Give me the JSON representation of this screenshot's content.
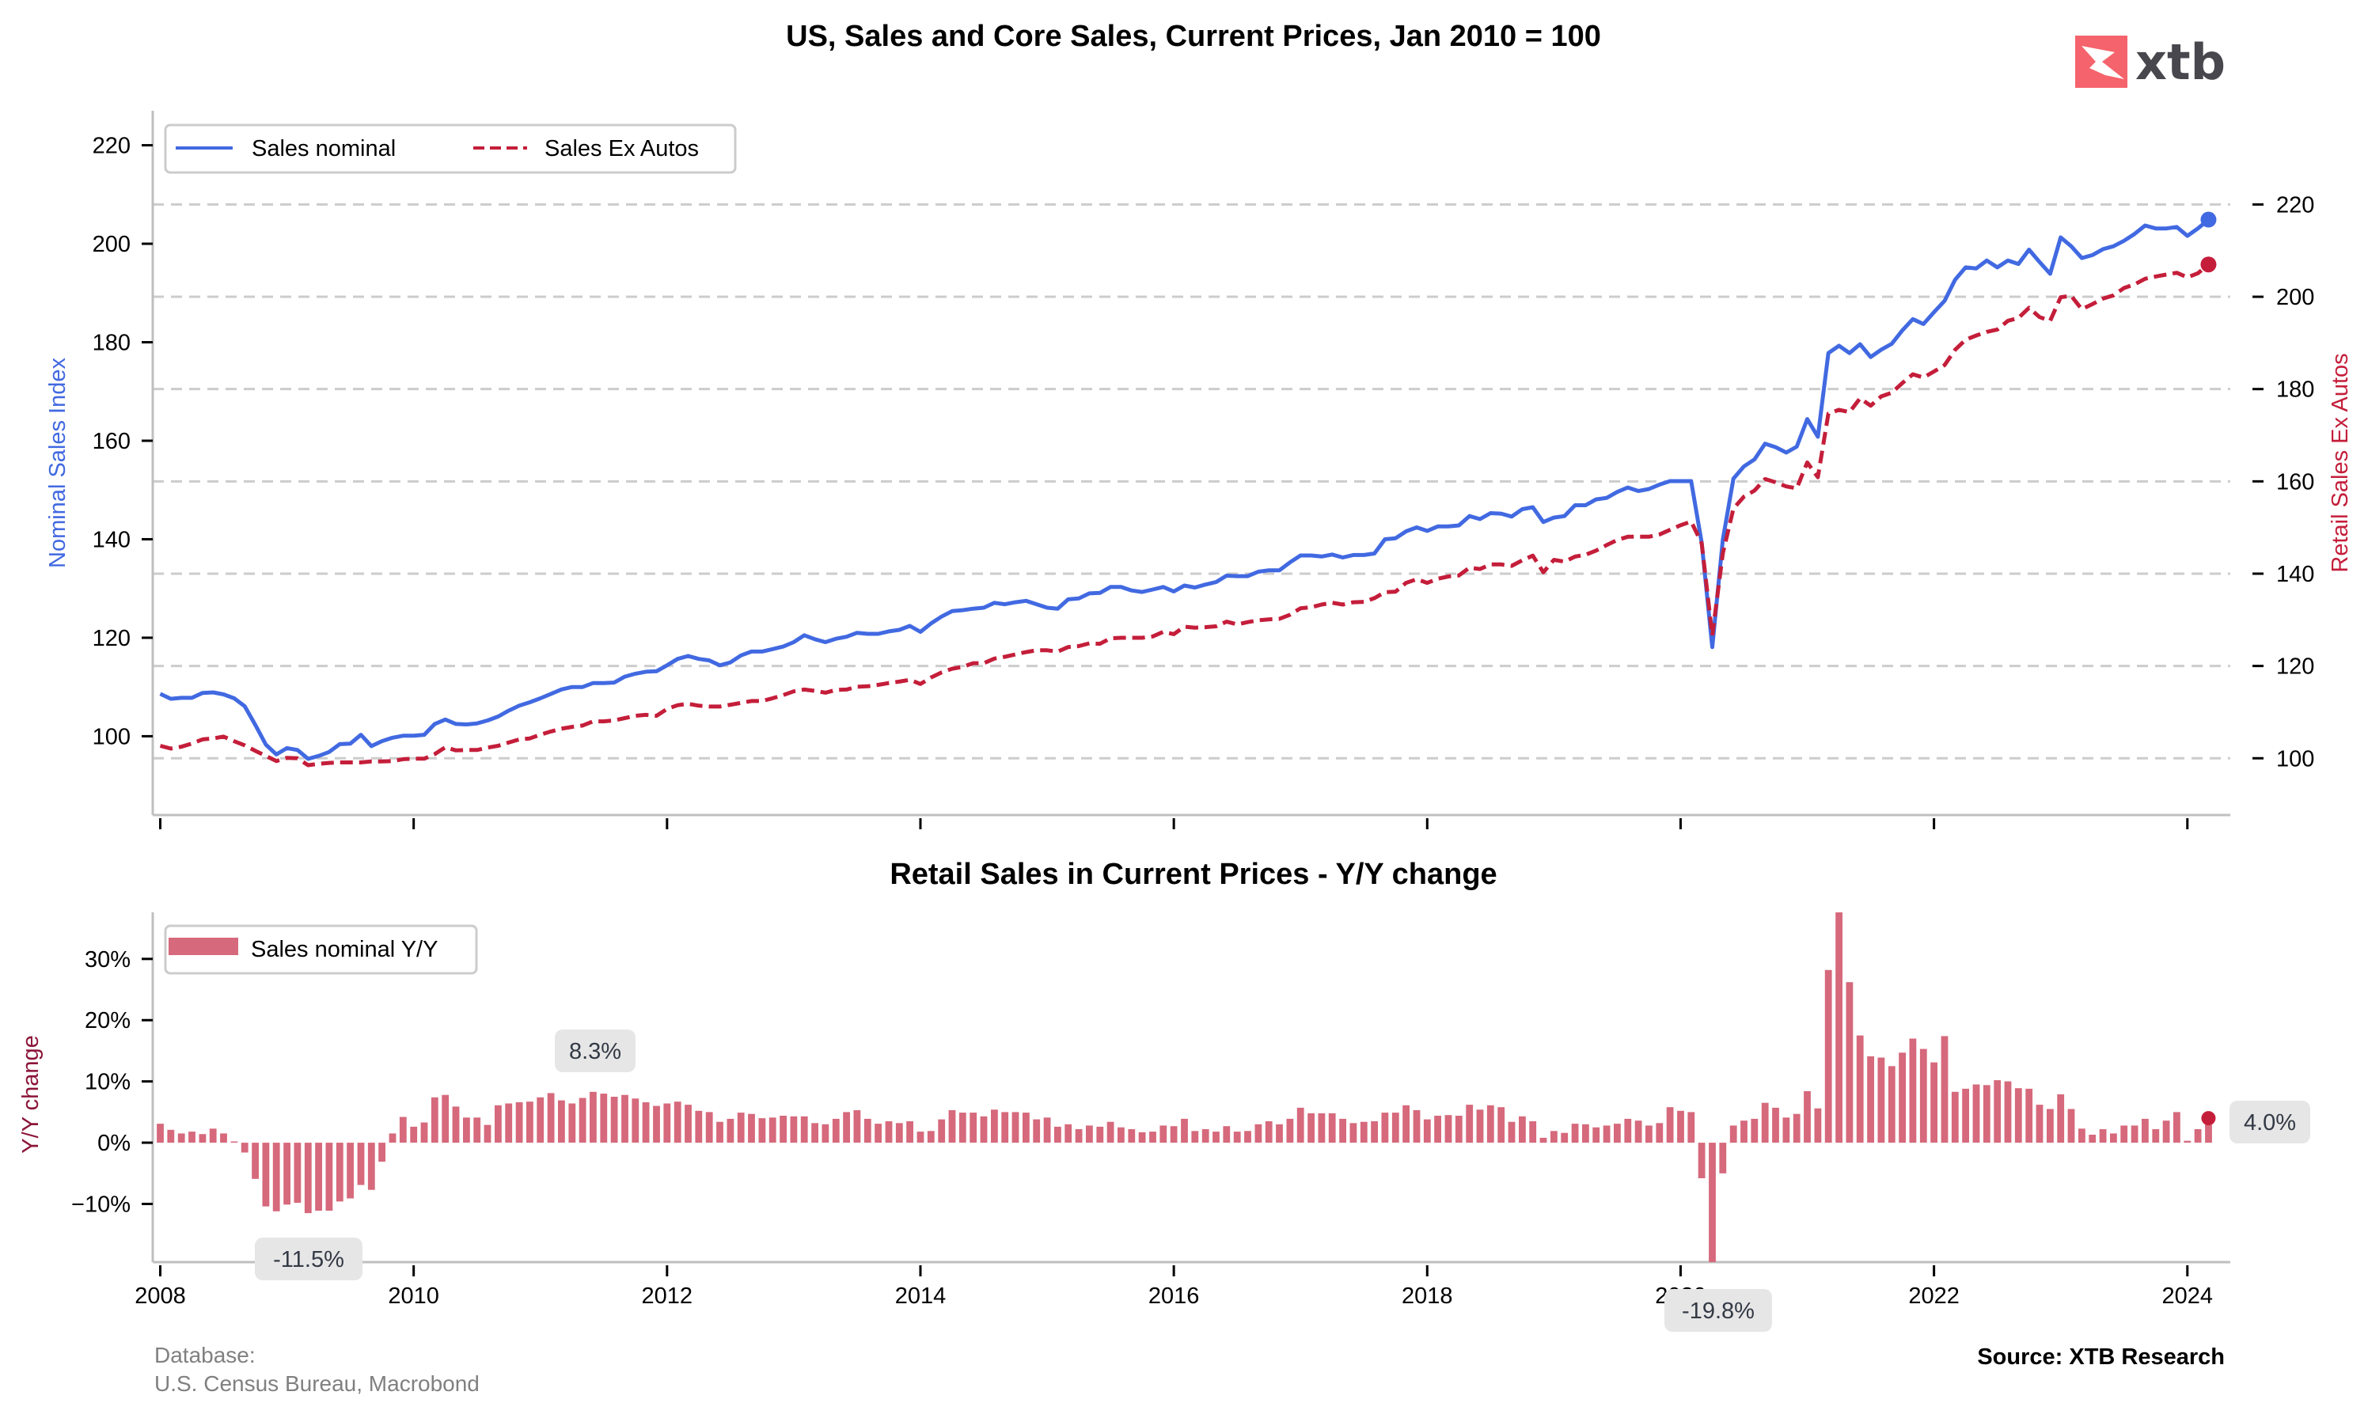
{
  "logo": {
    "text": "xtb",
    "mark_color": "#f5636c"
  },
  "colors": {
    "nominal": "#4169e1",
    "ex_autos": "#c41e3a",
    "bars": "#d6697c",
    "bar_dot": "#c41e3a",
    "grid": "#cccccc",
    "spine": "#bfbfbf",
    "label_bg": "#e6e6e6"
  },
  "footer": {
    "database_label": "Database:",
    "database_value": "U.S. Census Bureau, Macrobond",
    "source": "Source: XTB Research"
  },
  "chart_data": [
    {
      "type": "line",
      "title": "US, Sales and Core Sales, Current Prices, Jan 2010 = 100",
      "x_start": "2008-01",
      "x_frequency": "monthly",
      "xlabel": "",
      "ylabel": "Nominal Sales Index",
      "ylabel_right": "Retail Sales Ex Autos",
      "ylim": [
        84,
        227
      ],
      "ylim_right": [
        87.7,
        240.3
      ],
      "yticks": [
        "100",
        "120",
        "140",
        "160",
        "180",
        "200",
        "220"
      ],
      "yticks_right": [
        "100",
        "120",
        "140",
        "160",
        "180",
        "200",
        "220"
      ],
      "grid": "horizontal dashed (right axis)",
      "legend": {
        "position": "top-left",
        "entries": [
          "Sales nominal",
          "Sales Ex Autos"
        ]
      },
      "series": [
        {
          "name": "Sales nominal",
          "axis": "left",
          "style": "solid",
          "values": [
            108.6,
            107.6,
            107.8,
            107.8,
            108.8,
            108.9,
            108.5,
            107.7,
            106.1,
            102.3,
            98.3,
            96.3,
            97.6,
            97.2,
            95.4,
            96.0,
            96.8,
            98.4,
            98.5,
            100.3,
            98.0,
            99.0,
            99.7,
            100.1,
            100.1,
            100.3,
            102.5,
            103.4,
            102.5,
            102.4,
            102.6,
            103.2,
            104.0,
            105.2,
            106.2,
            106.9,
            107.7,
            108.6,
            109.5,
            110.0,
            110.0,
            110.8,
            110.8,
            110.9,
            112.1,
            112.7,
            113.1,
            113.2,
            114.4,
            115.7,
            116.3,
            115.7,
            115.4,
            114.4,
            115.0,
            116.4,
            117.2,
            117.2,
            117.7,
            118.2,
            119.1,
            120.5,
            119.7,
            119.1,
            119.8,
            120.2,
            121.0,
            120.8,
            120.8,
            121.3,
            121.6,
            122.4,
            121.2,
            122.9,
            124.3,
            125.4,
            125.6,
            125.9,
            126.1,
            127.1,
            126.8,
            127.2,
            127.5,
            126.8,
            126.1,
            125.9,
            127.8,
            128.0,
            129.0,
            129.1,
            130.3,
            130.3,
            129.6,
            129.3,
            129.8,
            130.3,
            129.4,
            130.6,
            130.2,
            130.8,
            131.3,
            132.6,
            132.5,
            132.5,
            133.4,
            133.7,
            133.7,
            135.3,
            136.7,
            136.7,
            136.5,
            136.9,
            136.3,
            136.8,
            136.8,
            137.1,
            140.0,
            140.2,
            141.6,
            142.4,
            141.7,
            142.6,
            142.6,
            142.8,
            144.7,
            144.1,
            145.3,
            145.2,
            144.6,
            146.1,
            146.5,
            143.5,
            144.4,
            144.7,
            146.9,
            146.9,
            148.1,
            148.4,
            149.6,
            150.5,
            149.8,
            150.2,
            151.1,
            151.8,
            151.8,
            151.8,
            139.3,
            118.1,
            139.9,
            152.3,
            154.8,
            156.2,
            159.4,
            158.7,
            157.6,
            158.8,
            164.4,
            160.8,
            177.8,
            179.3,
            177.8,
            179.6,
            177.0,
            178.5,
            179.7,
            182.4,
            184.7,
            183.7,
            186.1,
            188.4,
            192.7,
            195.2,
            195.0,
            196.6,
            195.2,
            196.6,
            195.9,
            198.8,
            196.3,
            193.9,
            201.3,
            199.5,
            197.1,
            197.7,
            198.9,
            199.5,
            200.6,
            202.0,
            203.7,
            203.1,
            203.1,
            203.4,
            201.6,
            203.1,
            204.9
          ]
        },
        {
          "name": "Sales Ex Autos",
          "axis": "right",
          "style": "dashed",
          "values": [
            102.7,
            102.1,
            102.5,
            103.2,
            104.1,
            104.3,
            104.7,
            103.7,
            102.8,
            101.6,
            100.5,
            99.4,
            100.1,
            100.0,
            98.5,
            98.8,
            99.0,
            99.1,
            99.1,
            99.1,
            99.3,
            99.3,
            99.4,
            99.8,
            99.9,
            99.9,
            100.9,
            102.4,
            101.7,
            101.8,
            101.8,
            102.3,
            102.7,
            103.4,
            104.1,
            104.3,
            105.1,
            105.8,
            106.4,
            106.8,
            107.1,
            108.0,
            108.0,
            108.2,
            108.7,
            109.2,
            109.4,
            109.2,
            110.7,
            111.5,
            111.8,
            111.4,
            111.2,
            111.2,
            111.6,
            112.0,
            112.4,
            112.4,
            113.0,
            113.7,
            114.5,
            114.9,
            114.6,
            114.2,
            114.8,
            114.9,
            115.5,
            115.6,
            115.9,
            116.3,
            116.6,
            117.0,
            116.1,
            117.5,
            118.6,
            119.4,
            119.8,
            120.6,
            120.6,
            121.6,
            122.0,
            122.5,
            123.0,
            123.4,
            123.4,
            123.1,
            124.1,
            124.3,
            124.9,
            124.8,
            126.0,
            126.1,
            126.1,
            126.1,
            126.4,
            127.4,
            126.9,
            128.5,
            128.3,
            128.4,
            128.6,
            129.6,
            129.0,
            129.5,
            129.9,
            130.1,
            130.2,
            131.1,
            132.5,
            132.7,
            133.3,
            133.7,
            133.3,
            133.8,
            133.9,
            134.7,
            136.0,
            136.1,
            138.0,
            138.8,
            138.0,
            138.9,
            139.4,
            139.6,
            141.3,
            141.0,
            142.0,
            142.0,
            141.7,
            142.9,
            143.9,
            140.3,
            143.0,
            142.6,
            143.7,
            144.1,
            145.0,
            146.2,
            147.3,
            148.0,
            148.0,
            148.0,
            148.5,
            149.5,
            150.5,
            151.3,
            146.6,
            126.6,
            144.4,
            154.1,
            156.7,
            158.0,
            160.5,
            159.8,
            158.9,
            158.5,
            164.1,
            160.9,
            174.7,
            175.5,
            175.0,
            178.0,
            176.4,
            178.4,
            179.2,
            181.3,
            183.2,
            182.5,
            183.8,
            185.2,
            188.5,
            190.7,
            191.6,
            192.4,
            192.9,
            194.8,
            195.4,
            197.6,
            195.6,
            194.8,
            199.9,
            200.2,
            197.3,
            198.4,
            199.6,
            200.3,
            201.9,
            202.7,
            203.9,
            204.4,
            204.8,
            205.2,
            204.2,
            205.1,
            207.0
          ]
        }
      ]
    },
    {
      "type": "bar",
      "title": "Retail Sales in Current Prices - Y/Y change",
      "x_start": "2008-01",
      "x_frequency": "monthly",
      "xticks": [
        "2008",
        "2010",
        "2012",
        "2014",
        "2016",
        "2018",
        "2020",
        "2022",
        "2024"
      ],
      "ylabel": "Y/Y change",
      "ylim": [
        -19.5,
        37.6
      ],
      "yticks": [
        "−10%",
        "0%",
        "10%",
        "20%",
        "30%"
      ],
      "grid": "off",
      "legend": {
        "position": "top-left",
        "entries": [
          "Sales nominal Y/Y"
        ]
      },
      "series": [
        {
          "name": "Sales nominal Y/Y",
          "unit": "%",
          "values": [
            3.1,
            2.1,
            1.5,
            1.8,
            1.4,
            2.3,
            1.5,
            0.2,
            -1.6,
            -5.9,
            -10.4,
            -11.2,
            -10.1,
            -9.8,
            -11.5,
            -11.1,
            -11.1,
            -9.6,
            -9.1,
            -6.9,
            -7.7,
            -3.1,
            1.5,
            4.2,
            2.6,
            3.3,
            7.4,
            7.8,
            5.9,
            4.1,
            4.1,
            2.9,
            6.1,
            6.4,
            6.6,
            6.7,
            7.4,
            8.1,
            6.9,
            6.4,
            7.3,
            8.3,
            8.0,
            7.5,
            7.8,
            7.2,
            6.6,
            6.0,
            6.4,
            6.7,
            6.2,
            5.2,
            5.0,
            3.4,
            3.9,
            4.9,
            4.7,
            4.0,
            4.1,
            4.4,
            4.3,
            4.3,
            3.2,
            3.0,
            3.9,
            5.0,
            5.3,
            3.9,
            3.1,
            3.5,
            3.2,
            3.5,
            1.8,
            1.9,
            3.8,
            5.3,
            4.9,
            4.9,
            4.3,
            5.4,
            5.0,
            5.0,
            4.9,
            3.8,
            4.1,
            2.6,
            3.0,
            2.2,
            2.8,
            2.6,
            3.4,
            2.5,
            2.2,
            1.7,
            1.8,
            2.8,
            2.7,
            3.9,
            1.9,
            2.2,
            1.8,
            2.7,
            1.8,
            1.9,
            3.0,
            3.5,
            3.0,
            3.9,
            5.7,
            4.8,
            4.8,
            4.8,
            3.9,
            3.2,
            3.4,
            3.5,
            4.9,
            4.9,
            6.1,
            5.3,
            3.8,
            4.4,
            4.5,
            4.4,
            6.2,
            5.4,
            6.1,
            5.8,
            3.4,
            4.3,
            3.5,
            0.8,
            1.9,
            1.6,
            3.1,
            3.0,
            2.5,
            2.8,
            3.1,
            3.9,
            3.6,
            2.8,
            3.2,
            5.8,
            5.2,
            5.0,
            -5.8,
            -19.8,
            -5.0,
            2.8,
            3.6,
            3.9,
            6.5,
            5.7,
            4.1,
            4.7,
            8.4,
            5.6,
            28.2,
            37.6,
            26.2,
            17.5,
            14.1,
            13.9,
            12.5,
            14.7,
            17.0,
            15.3,
            13.1,
            17.4,
            8.3,
            8.8,
            9.5,
            9.4,
            10.2,
            10.0,
            8.9,
            8.8,
            6.2,
            5.5,
            7.9,
            5.5,
            2.3,
            1.3,
            2.2,
            1.5,
            2.8,
            2.8,
            3.9,
            2.2,
            3.6,
            5.0,
            0.3,
            2.2,
            4.0
          ]
        }
      ],
      "annotations": [
        {
          "label": "-11.5%",
          "at": "2009-03"
        },
        {
          "label": "8.3%",
          "at": "2011-06"
        },
        {
          "label": "-19.8%",
          "at": "2020-04"
        },
        {
          "label": "4.0%",
          "at": "2024-03"
        }
      ]
    }
  ]
}
